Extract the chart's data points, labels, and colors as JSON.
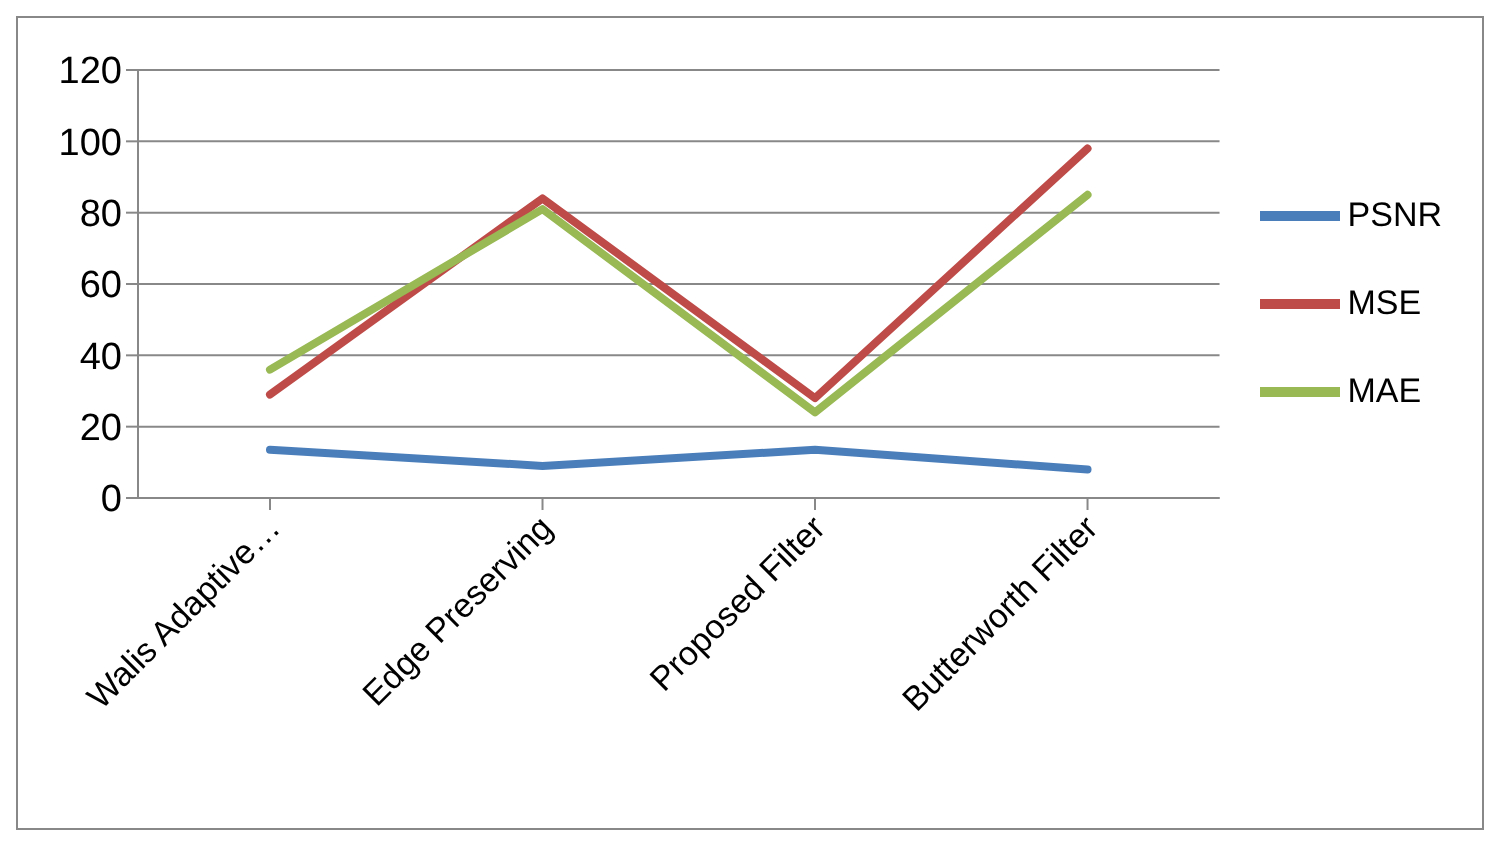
{
  "chart_data": {
    "type": "line",
    "categories": [
      "Walis Adaptive…",
      "Edge Preserving",
      "Proposed Filter",
      "Butterworth Filter"
    ],
    "series": [
      {
        "name": "PSNR",
        "color": "#4a7ebb",
        "values": [
          13.5,
          9,
          13.5,
          8
        ]
      },
      {
        "name": "MSE",
        "color": "#be4b48",
        "values": [
          29,
          84,
          28,
          98
        ]
      },
      {
        "name": "MAE",
        "color": "#98b954",
        "values": [
          36,
          81,
          24,
          85
        ]
      }
    ],
    "ylim": [
      0,
      120
    ],
    "yticks": [
      0,
      20,
      40,
      60,
      80,
      100,
      120
    ],
    "grid": "y",
    "legend": "right",
    "marker": "none",
    "line_style": "solid"
  }
}
